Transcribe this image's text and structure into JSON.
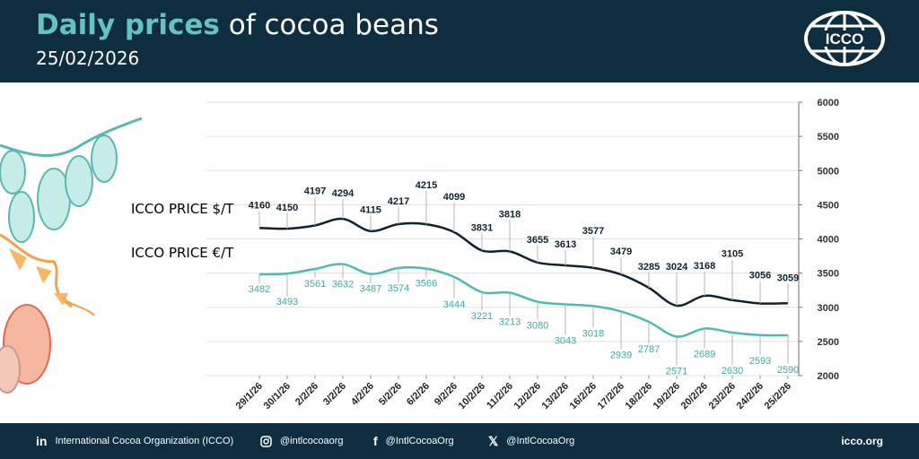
{
  "header": {
    "title_bold": "Daily prices",
    "title_rest": "of cocoa beans",
    "date": "25/02/2026",
    "logo_text": "ICCO"
  },
  "chart_data": {
    "type": "line",
    "title": "",
    "xlabel": "",
    "ylabel": "",
    "ylim": [
      2000,
      6000
    ],
    "yticks": [
      2000,
      2500,
      3000,
      3500,
      4000,
      4500,
      5000,
      5500,
      6000
    ],
    "y_axis_side": "right",
    "grid": "horizontal",
    "categories": [
      "29/1/26",
      "30/1/26",
      "2/2/26",
      "3/2/26",
      "4/2/26",
      "5/2/26",
      "6/2/26",
      "9/2/26",
      "10/2/26",
      "11/2/26",
      "12/2/26",
      "13/2/26",
      "16/2/26",
      "17/2/26",
      "18/2/26",
      "19/2/26",
      "20/2/26",
      "23/2/26",
      "24/2/26",
      "25/2/26"
    ],
    "series": [
      {
        "name": "ICCO PRICE $/T",
        "color": "#0e2330",
        "values": [
          4160,
          4150,
          4197,
          4294,
          4115,
          4217,
          4215,
          4099,
          3831,
          3818,
          3655,
          3613,
          3577,
          3479,
          3285,
          3024,
          3168,
          3105,
          3056,
          3059
        ]
      },
      {
        "name": "ICCO PRICE €/T",
        "color": "#4fbab2",
        "values": [
          3482,
          3493,
          3561,
          3632,
          3487,
          3574,
          3566,
          3444,
          3221,
          3213,
          3080,
          3043,
          3018,
          2939,
          2787,
          2571,
          2689,
          2630,
          2593,
          2590
        ]
      }
    ]
  },
  "footer": {
    "linkedin_icon": "linkedin-icon",
    "linkedin": "International Cocoa Organization (ICCO)",
    "instagram_icon": "instagram-icon",
    "instagram": "@intlcocoaorg",
    "facebook_icon": "facebook-icon",
    "facebook": "@IntlCocoaOrg",
    "x_icon": "x-icon",
    "x": "@IntlCocoaOrg",
    "site": "icco.org"
  }
}
